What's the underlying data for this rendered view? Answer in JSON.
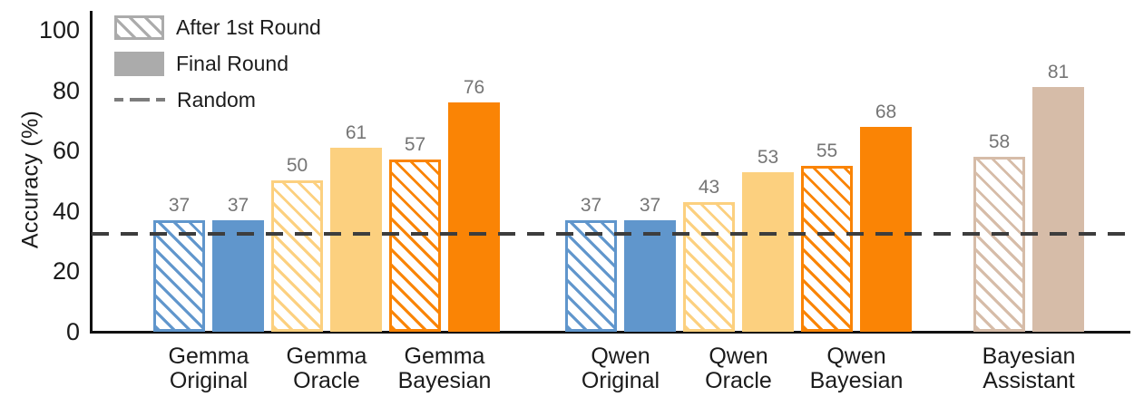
{
  "chart_data": {
    "type": "bar",
    "title": "",
    "ylabel": "Accuracy (%)",
    "xlabel": "",
    "yticks": [
      0,
      20,
      40,
      60,
      80,
      100
    ],
    "ylim": [
      0,
      107
    ],
    "grid": false,
    "legend_position": "upper-left",
    "categories": [
      "Gemma Original",
      "Gemma Oracle",
      "Gemma Bayesian",
      "Qwen Original",
      "Qwen Oracle",
      "Qwen Bayesian",
      "Bayesian Assistant"
    ],
    "category_label_lines": [
      [
        "Gemma",
        "Original"
      ],
      [
        "Gemma",
        "Oracle"
      ],
      [
        "Gemma",
        "Bayesian"
      ],
      [
        "Qwen",
        "Original"
      ],
      [
        "Qwen",
        "Oracle"
      ],
      [
        "Qwen",
        "Bayesian"
      ],
      [
        "Bayesian",
        "Assistant"
      ]
    ],
    "bar_colors": [
      "#6096CC",
      "#FCD07F",
      "#FA8405",
      "#6096CC",
      "#FCD07F",
      "#FA8405",
      "#D6BCA8"
    ],
    "series": [
      {
        "name": "After 1st Round",
        "style": "hatched",
        "values": [
          37,
          50,
          57,
          37,
          43,
          55,
          58
        ]
      },
      {
        "name": "Final Round",
        "style": "solid",
        "values": [
          37,
          61,
          76,
          37,
          53,
          68,
          81
        ]
      }
    ],
    "random_line": {
      "label": "Random",
      "value": 33,
      "style": "dashed",
      "color": "#3D3D3D"
    },
    "legend_swatch_color": "#ABABAB",
    "value_label_color": "#757575"
  }
}
